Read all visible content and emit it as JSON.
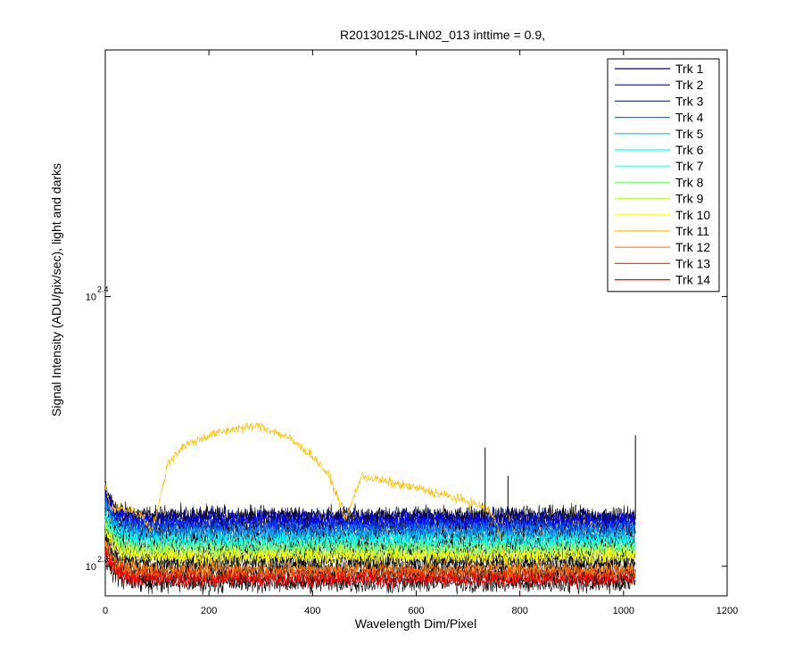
{
  "chart_data": {
    "type": "line",
    "title": "R20130125-LIN02_013 inttime = 0.9,",
    "xlabel": "Wavelength Dim/Pixel",
    "ylabel": "Signal Intensity (ADU/pix/sec), light and darks",
    "y_scale": "log",
    "xlim": [
      0,
      1200
    ],
    "ylim_log10": [
      2.289,
      2.4915
    ],
    "x_ticks": [
      "0",
      "200",
      "400",
      "600",
      "800",
      "1000",
      "1200"
    ],
    "y_ticks": [
      {
        "base": "10",
        "exp": "2.3",
        "log10": 2.3
      },
      {
        "base": "10",
        "exp": "2.4",
        "log10": 2.4
      }
    ],
    "grid": false,
    "legend_position": "top-right",
    "series": [
      {
        "name": "Trk 1",
        "color": "#00008f",
        "level_log10": 2.3186
      },
      {
        "name": "Trk 2",
        "color": "#0000ff",
        "level_log10": 2.3168
      },
      {
        "name": "Trk 3",
        "color": "#0040ff",
        "level_log10": 2.315
      },
      {
        "name": "Trk 4",
        "color": "#0080ff",
        "level_log10": 2.3132
      },
      {
        "name": "Trk 5",
        "color": "#00c0ff",
        "level_log10": 2.3114
      },
      {
        "name": "Trk 6",
        "color": "#00ffff",
        "level_log10": 2.3096
      },
      {
        "name": "Trk 7",
        "color": "#40ffbf",
        "level_log10": 2.308
      },
      {
        "name": "Trk 8",
        "color": "#80ff80",
        "level_log10": 2.3064
      },
      {
        "name": "Trk 9",
        "color": "#bfff40",
        "level_log10": 2.305
      },
      {
        "name": "Trk 10",
        "color": "#ffff00",
        "level_log10": 2.3036
      },
      {
        "name": "Trk 11",
        "color": "#ffbf00",
        "level_log10": null,
        "profile": [
          [
            0,
            2.33
          ],
          [
            10,
            2.3215
          ],
          [
            50,
            2.321
          ],
          [
            75,
            2.318
          ],
          [
            90,
            2.3135
          ],
          [
            105,
            2.324
          ],
          [
            120,
            2.338
          ],
          [
            150,
            2.3445
          ],
          [
            200,
            2.3485
          ],
          [
            250,
            2.351
          ],
          [
            300,
            2.352
          ],
          [
            350,
            2.348
          ],
          [
            400,
            2.341
          ],
          [
            430,
            2.334
          ],
          [
            450,
            2.325
          ],
          [
            465,
            2.3175
          ],
          [
            480,
            2.326
          ],
          [
            495,
            2.3335
          ],
          [
            550,
            2.331
          ],
          [
            600,
            2.329
          ],
          [
            650,
            2.3265
          ],
          [
            700,
            2.324
          ],
          [
            740,
            2.321
          ],
          [
            755,
            2.316
          ],
          [
            770,
            2.304
          ],
          [
            780,
            2.299
          ],
          [
            790,
            2.2985
          ]
        ]
      },
      {
        "name": "Trk 12",
        "color": "#ff8000",
        "level_log10": 2.299
      },
      {
        "name": "Trk 13",
        "color": "#ff4000",
        "level_log10": 2.297
      },
      {
        "name": "Trk 14",
        "color": "#ff0000",
        "level_log10": 2.295
      }
    ],
    "dark_series": {
      "color": "#000000",
      "levels_log10": [
        2.319,
        2.3175,
        2.3155,
        2.3135,
        2.3115,
        2.3095,
        2.3075,
        2.3055,
        2.3035,
        2.3015,
        2.2995,
        2.2975,
        2.2955,
        2.2935
      ]
    },
    "spikes": [
      [
        733,
        2.344
      ],
      [
        777,
        2.3335
      ],
      [
        1023,
        2.3485
      ]
    ]
  }
}
